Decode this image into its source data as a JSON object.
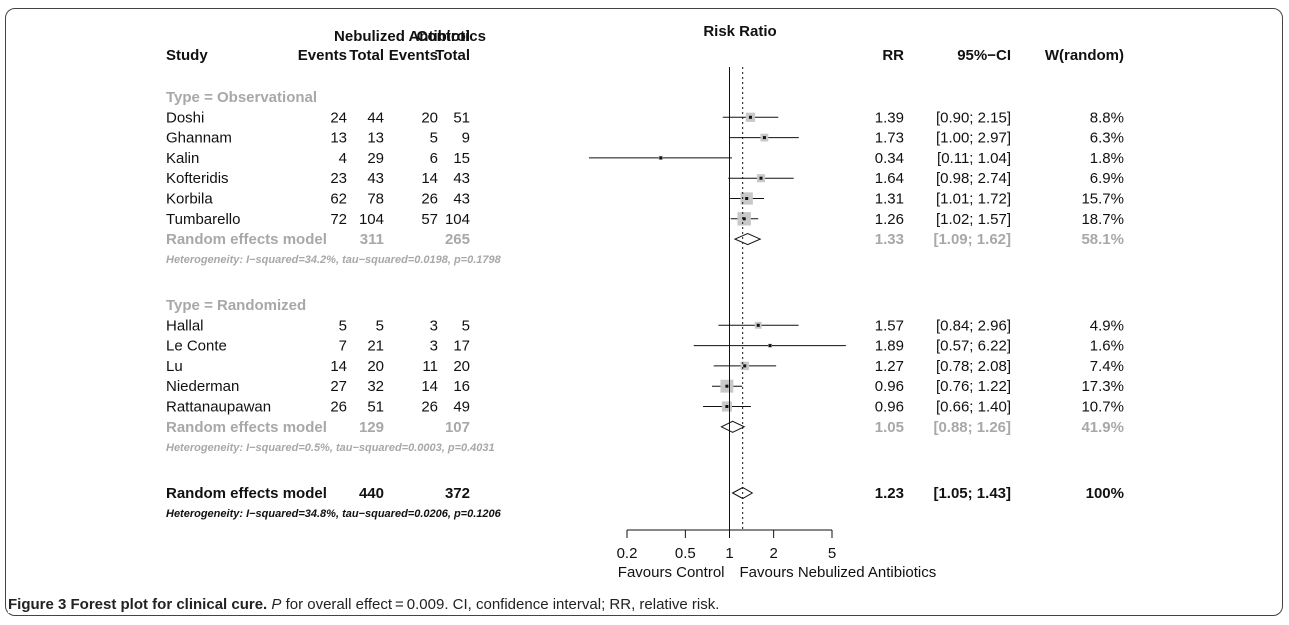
{
  "headers": {
    "study": "Study",
    "group_nebulized": "Nebulized Antibiotics",
    "group_control": "Control",
    "events": "Events",
    "total": "Total",
    "risk_ratio": "Risk Ratio",
    "rr": "RR",
    "ci": "95%−CI",
    "weight": "W(random)"
  },
  "chart_data": {
    "type": "forest",
    "x_scale": "log",
    "xlim": [
      0.2,
      5
    ],
    "ticks": [
      "0.2",
      "0.5",
      "1",
      "2",
      "5"
    ],
    "tick_values": [
      0.2,
      0.5,
      1,
      2,
      5
    ],
    "null_line": 1,
    "overall_estimate_line": 1.23,
    "favours_left": "Favours Control",
    "favours_right": "Favours Nebulized Antibiotics",
    "groups": [
      {
        "label": "Type = Observational",
        "studies": [
          {
            "name": "Doshi",
            "e1": "24",
            "t1": "44",
            "e2": "20",
            "t2": "51",
            "rr": 1.39,
            "lo": 0.9,
            "hi": 2.15,
            "rr_text": "1.39",
            "ci_text": "[0.90; 2.15]",
            "w": 8.8,
            "w_text": "8.8%"
          },
          {
            "name": "Ghannam",
            "e1": "13",
            "t1": "13",
            "e2": "5",
            "t2": "9",
            "rr": 1.73,
            "lo": 1.0,
            "hi": 2.97,
            "rr_text": "1.73",
            "ci_text": "[1.00; 2.97]",
            "w": 6.3,
            "w_text": "6.3%"
          },
          {
            "name": "Kalin",
            "e1": "4",
            "t1": "29",
            "e2": "6",
            "t2": "15",
            "rr": 0.34,
            "lo": 0.11,
            "hi": 1.04,
            "rr_text": "0.34",
            "ci_text": "[0.11; 1.04]",
            "w": 1.8,
            "w_text": "1.8%"
          },
          {
            "name": "Kofteridis",
            "e1": "23",
            "t1": "43",
            "e2": "14",
            "t2": "43",
            "rr": 1.64,
            "lo": 0.98,
            "hi": 2.74,
            "rr_text": "1.64",
            "ci_text": "[0.98; 2.74]",
            "w": 6.9,
            "w_text": "6.9%"
          },
          {
            "name": "Korbila",
            "e1": "62",
            "t1": "78",
            "e2": "26",
            "t2": "43",
            "rr": 1.31,
            "lo": 1.01,
            "hi": 1.72,
            "rr_text": "1.31",
            "ci_text": "[1.01; 1.72]",
            "w": 15.7,
            "w_text": "15.7%"
          },
          {
            "name": "Tumbarello",
            "e1": "72",
            "t1": "104",
            "e2": "57",
            "t2": "104",
            "rr": 1.26,
            "lo": 1.02,
            "hi": 1.57,
            "rr_text": "1.26",
            "ci_text": "[1.02; 1.57]",
            "w": 18.7,
            "w_text": "18.7%"
          }
        ],
        "summary": {
          "label": "Random effects model",
          "t1": "311",
          "t2": "265",
          "rr": 1.33,
          "lo": 1.09,
          "hi": 1.62,
          "rr_text": "1.33",
          "ci_text": "[1.09; 1.62]",
          "w_text": "58.1%"
        },
        "heterogeneity": "Heterogeneity: I−squared=34.2%, tau−squared=0.0198, p=0.1798"
      },
      {
        "label": "Type = Randomized",
        "studies": [
          {
            "name": "Hallal",
            "e1": "5",
            "t1": "5",
            "e2": "3",
            "t2": "5",
            "rr": 1.57,
            "lo": 0.84,
            "hi": 2.96,
            "rr_text": "1.57",
            "ci_text": "[0.84; 2.96]",
            "w": 4.9,
            "w_text": "4.9%"
          },
          {
            "name": "Le Conte",
            "e1": "7",
            "t1": "21",
            "e2": "3",
            "t2": "17",
            "rr": 1.89,
            "lo": 0.57,
            "hi": 6.22,
            "rr_text": "1.89",
            "ci_text": "[0.57; 6.22]",
            "w": 1.6,
            "w_text": "1.6%"
          },
          {
            "name": "Lu",
            "e1": "14",
            "t1": "20",
            "e2": "11",
            "t2": "20",
            "rr": 1.27,
            "lo": 0.78,
            "hi": 2.08,
            "rr_text": "1.27",
            "ci_text": "[0.78; 2.08]",
            "w": 7.4,
            "w_text": "7.4%"
          },
          {
            "name": "Niederman",
            "e1": "27",
            "t1": "32",
            "e2": "14",
            "t2": "16",
            "rr": 0.96,
            "lo": 0.76,
            "hi": 1.22,
            "rr_text": "0.96",
            "ci_text": "[0.76; 1.22]",
            "w": 17.3,
            "w_text": "17.3%"
          },
          {
            "name": "Rattanaupawan",
            "e1": "26",
            "t1": "51",
            "e2": "26",
            "t2": "49",
            "rr": 0.96,
            "lo": 0.66,
            "hi": 1.4,
            "rr_text": "0.96",
            "ci_text": "[0.66; 1.40]",
            "w": 10.7,
            "w_text": "10.7%"
          }
        ],
        "summary": {
          "label": "Random effects model",
          "t1": "129",
          "t2": "107",
          "rr": 1.05,
          "lo": 0.88,
          "hi": 1.26,
          "rr_text": "1.05",
          "ci_text": "[0.88; 1.26]",
          "w_text": "41.9%"
        },
        "heterogeneity": "Heterogeneity: I−squared=0.5%, tau−squared=0.0003, p=0.4031"
      }
    ],
    "overall": {
      "label": "Random effects model",
      "t1": "440",
      "t2": "372",
      "rr": 1.23,
      "lo": 1.05,
      "hi": 1.43,
      "rr_text": "1.23",
      "ci_text": "[1.05; 1.43]",
      "w_text": "100%"
    },
    "overall_heterogeneity": "Heterogeneity: I−squared=34.8%, tau−squared=0.0206, p=0.1206"
  },
  "caption": {
    "label": "Figure 3 Forest plot for clinical cure.",
    "p_symbol": "P",
    "text": " for overall effect = 0.009. CI, confidence interval; RR, relative risk."
  },
  "colors": {
    "text": "#111111",
    "subgroup": "#a8a8a8",
    "box": "#c8c8c8",
    "line": "#111111"
  }
}
